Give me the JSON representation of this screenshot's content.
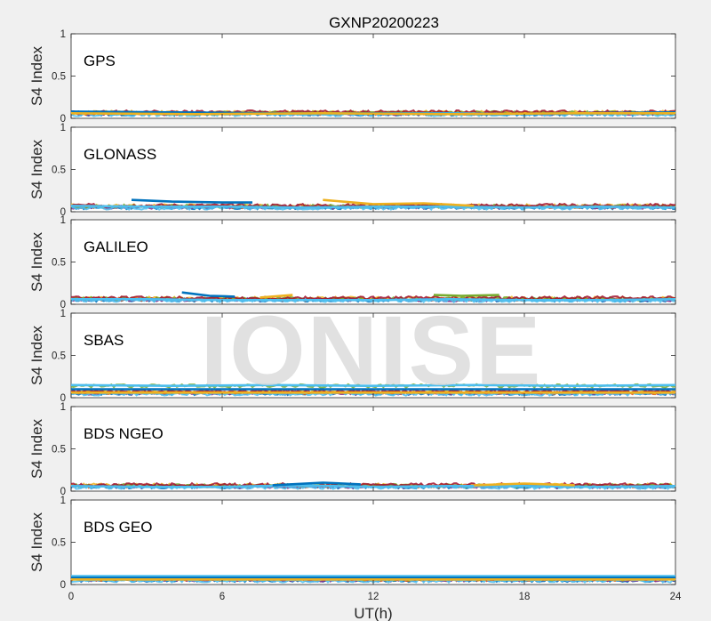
{
  "chart_data": {
    "type": "line",
    "title": "GXNP20200223",
    "xlabel": "UT(h)",
    "ylabel": "S4 Index",
    "xlim": [
      0,
      24
    ],
    "ylim": [
      0,
      1
    ],
    "x_ticks": [
      "0",
      "6",
      "12",
      "18",
      "24"
    ],
    "y_ticks": [
      "0",
      "0.5",
      "1"
    ],
    "watermark": "IONISE",
    "series_colors": [
      "#0072bd",
      "#d95319",
      "#edb120",
      "#7e2f8e",
      "#77ac30",
      "#4dbeee",
      "#a2142f"
    ],
    "panels": [
      {
        "name": "GPS",
        "series": [
          {
            "x": [
              0,
              3,
              6,
              9,
              12,
              15,
              18,
              21,
              24
            ],
            "y": [
              0.07,
              0.06,
              0.06,
              0.05,
              0.06,
              0.06,
              0.05,
              0.06,
              0.07
            ]
          },
          {
            "x": [
              0,
              4,
              8,
              12,
              16,
              20,
              24
            ],
            "y": [
              0.08,
              0.07,
              0.06,
              0.06,
              0.05,
              0.06,
              0.07
            ]
          },
          {
            "x": [
              0,
              5,
              10,
              15,
              20,
              24
            ],
            "y": [
              0.06,
              0.05,
              0.06,
              0.05,
              0.06,
              0.06
            ]
          }
        ]
      },
      {
        "name": "GLONASS",
        "series": [
          {
            "x": [
              0,
              3,
              6,
              9,
              12,
              15,
              18,
              21,
              24
            ],
            "y": [
              0.07,
              0.06,
              0.06,
              0.05,
              0.06,
              0.06,
              0.05,
              0.06,
              0.05
            ]
          },
          {
            "x": [
              2.4,
              4,
              6,
              7.2
            ],
            "y": [
              0.14,
              0.12,
              0.11,
              0.11
            ]
          },
          {
            "x": [
              10,
              12,
              14,
              16
            ],
            "y": [
              0.14,
              0.09,
              0.1,
              0.07
            ]
          }
        ]
      },
      {
        "name": "GALILEO",
        "series": [
          {
            "x": [
              0,
              3,
              6,
              9,
              12,
              15,
              18,
              21,
              24
            ],
            "y": [
              0.06,
              0.06,
              0.05,
              0.05,
              0.05,
              0.06,
              0.05,
              0.05,
              0.06
            ]
          },
          {
            "x": [
              4.4,
              5.5,
              6.5
            ],
            "y": [
              0.14,
              0.1,
              0.09
            ]
          },
          {
            "x": [
              7.5,
              8.8
            ],
            "y": [
              0.08,
              0.11
            ]
          },
          {
            "x": [
              14.4,
              15.5,
              17
            ],
            "y": [
              0.11,
              0.1,
              0.11
            ]
          }
        ]
      },
      {
        "name": "SBAS",
        "series": [
          {
            "x": [
              0,
              4,
              8,
              12,
              16,
              20,
              24
            ],
            "y": [
              0.15,
              0.14,
              0.15,
              0.14,
              0.15,
              0.14,
              0.15
            ]
          },
          {
            "x": [
              0,
              6,
              12,
              18,
              24
            ],
            "y": [
              0.1,
              0.1,
              0.1,
              0.1,
              0.1
            ]
          },
          {
            "x": [
              0,
              6,
              12,
              18,
              24
            ],
            "y": [
              0.06,
              0.06,
              0.06,
              0.06,
              0.06
            ]
          }
        ]
      },
      {
        "name": "BDS NGEO",
        "series": [
          {
            "x": [
              0,
              3,
              6,
              9,
              12,
              15,
              18,
              21,
              24
            ],
            "y": [
              0.06,
              0.05,
              0.05,
              0.07,
              0.05,
              0.06,
              0.06,
              0.05,
              0.06
            ]
          },
          {
            "x": [
              8,
              10,
              11.5
            ],
            "y": [
              0.07,
              0.1,
              0.08
            ]
          },
          {
            "x": [
              16,
              18,
              20
            ],
            "y": [
              0.07,
              0.09,
              0.07
            ]
          }
        ]
      },
      {
        "name": "BDS GEO",
        "series": [
          {
            "x": [
              0,
              6,
              12,
              18,
              24
            ],
            "y": [
              0.1,
              0.1,
              0.1,
              0.1,
              0.1
            ]
          },
          {
            "x": [
              0,
              6,
              12,
              18,
              24
            ],
            "y": [
              0.08,
              0.08,
              0.08,
              0.08,
              0.08
            ]
          },
          {
            "x": [
              0,
              6,
              12,
              18,
              24
            ],
            "y": [
              0.06,
              0.06,
              0.06,
              0.06,
              0.06
            ]
          }
        ]
      }
    ]
  }
}
